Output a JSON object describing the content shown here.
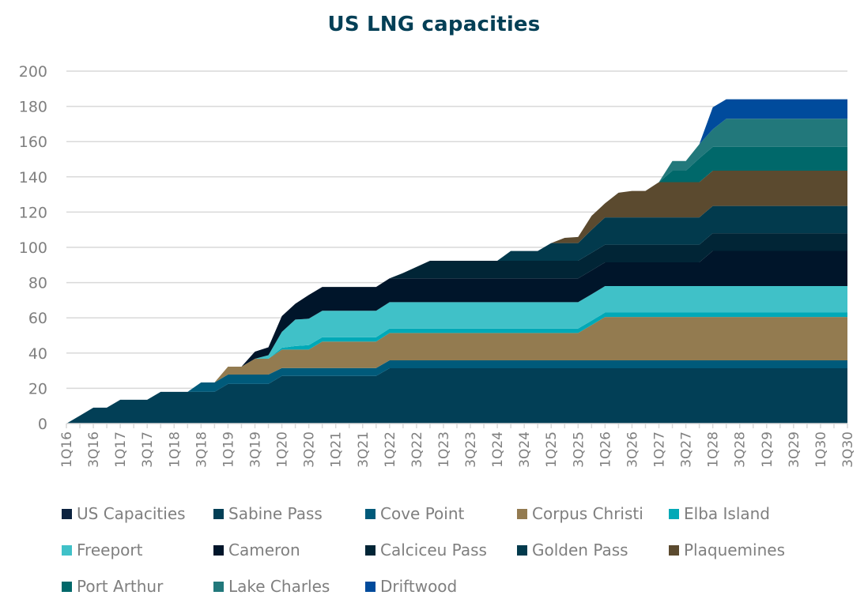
{
  "chart_data": {
    "type": "area",
    "stacked": true,
    "title": "US LNG capacities",
    "xlabel": "",
    "ylabel": "",
    "ylim": [
      0,
      200
    ],
    "yticks": [
      0,
      20,
      40,
      60,
      80,
      100,
      120,
      140,
      160,
      180,
      200
    ],
    "grid": true,
    "legend_position": "bottom",
    "categories": [
      "1Q16",
      "2Q16",
      "3Q16",
      "4Q16",
      "1Q17",
      "2Q17",
      "3Q17",
      "4Q17",
      "1Q18",
      "2Q18",
      "3Q18",
      "4Q18",
      "1Q19",
      "2Q19",
      "3Q19",
      "4Q19",
      "1Q20",
      "2Q20",
      "3Q20",
      "4Q20",
      "1Q21",
      "2Q21",
      "3Q21",
      "4Q21",
      "1Q22",
      "2Q22",
      "3Q22",
      "4Q22",
      "1Q23",
      "2Q23",
      "3Q23",
      "4Q23",
      "1Q24",
      "2Q24",
      "3Q24",
      "4Q24",
      "1Q25",
      "2Q25",
      "3Q25",
      "4Q25",
      "1Q26",
      "2Q26",
      "3Q26",
      "4Q26",
      "1Q27",
      "2Q27",
      "3Q27",
      "4Q27",
      "1Q28",
      "2Q28",
      "3Q28",
      "4Q28",
      "1Q29",
      "2Q29",
      "3Q29",
      "4Q29",
      "1Q30",
      "2Q30",
      "3Q30"
    ],
    "xtick_labels": [
      "1Q16",
      "3Q16",
      "1Q17",
      "3Q17",
      "1Q18",
      "3Q18",
      "1Q19",
      "3Q19",
      "1Q20",
      "3Q20",
      "1Q21",
      "3Q21",
      "1Q22",
      "3Q22",
      "1Q23",
      "3Q23",
      "1Q24",
      "3Q24",
      "1Q25",
      "3Q25",
      "1Q26",
      "3Q26",
      "1Q27",
      "3Q27",
      "1Q28",
      "3Q28",
      "1Q29",
      "3Q29",
      "1Q30",
      "3Q30"
    ],
    "series": [
      {
        "name": "US Capacities",
        "color": "#0c2340",
        "values": [
          0,
          0,
          0,
          0,
          0,
          0,
          0,
          0,
          0,
          0,
          0,
          0,
          0,
          0,
          0,
          0,
          0,
          0,
          0,
          0,
          0,
          0,
          0,
          0,
          0,
          0,
          0,
          0,
          0,
          0,
          0,
          0,
          0,
          0,
          0,
          0,
          0,
          0,
          0,
          0,
          0,
          0,
          0,
          0,
          0,
          0,
          0,
          0,
          0,
          0,
          0,
          0,
          0,
          0,
          0,
          0,
          0,
          0,
          0
        ]
      },
      {
        "name": "Sabine Pass",
        "color": "#023f56",
        "values": [
          0,
          4.5,
          9,
          9,
          13.5,
          13.5,
          13.5,
          18,
          18,
          18,
          18,
          18,
          22.5,
          22.5,
          22.5,
          22.5,
          27,
          27,
          27,
          27,
          27,
          27,
          27,
          27,
          31.4,
          31.4,
          31.4,
          31.4,
          31.4,
          31.4,
          31.4,
          31.4,
          31.4,
          31.4,
          31.4,
          31.4,
          31.4,
          31.4,
          31.4,
          31.4,
          31.4,
          31.4,
          31.4,
          31.4,
          31.4,
          31.4,
          31.4,
          31.4,
          31.4,
          31.4,
          31.4,
          31.4,
          31.4,
          31.4,
          31.4,
          31.4,
          31.4,
          31.4,
          31.4
        ]
      },
      {
        "name": "Cove Point",
        "color": "#005a7a",
        "values": [
          0,
          0,
          0,
          0,
          0,
          0,
          0,
          0,
          0,
          0,
          5.3,
          5.3,
          5.3,
          5.3,
          5.3,
          5.3,
          4.5,
          4.5,
          4.5,
          4.5,
          4.5,
          4.5,
          4.5,
          4.5,
          4.5,
          4.5,
          4.5,
          4.5,
          4.5,
          4.5,
          4.5,
          4.5,
          4.5,
          4.5,
          4.5,
          4.5,
          4.5,
          4.5,
          4.5,
          4.5,
          4.5,
          4.5,
          4.5,
          4.5,
          4.5,
          4.5,
          4.5,
          4.5,
          4.5,
          4.5,
          4.5,
          4.5,
          4.5,
          4.5,
          4.5,
          4.5,
          4.5,
          4.5,
          4.5
        ]
      },
      {
        "name": "Corpus Christi",
        "color": "#937b50",
        "values": [
          0,
          0,
          0,
          0,
          0,
          0,
          0,
          0,
          0,
          0,
          0,
          0,
          4.5,
          4.5,
          9,
          9,
          10.5,
          10.5,
          10.5,
          15,
          15,
          15,
          15,
          15,
          15.5,
          15.5,
          15.5,
          15.5,
          15.5,
          15.5,
          15.5,
          15.5,
          15.5,
          15.5,
          15.5,
          15.5,
          15.5,
          15.5,
          15.5,
          20,
          24.6,
          24.6,
          24.6,
          24.6,
          24.6,
          24.6,
          24.6,
          24.6,
          24.6,
          24.6,
          24.6,
          24.6,
          24.6,
          24.6,
          24.6,
          24.6,
          24.6,
          24.6,
          24.6
        ]
      },
      {
        "name": "Elba Island",
        "color": "#00a9b7",
        "values": [
          0,
          0,
          0,
          0,
          0,
          0,
          0,
          0,
          0,
          0,
          0,
          0,
          0,
          0,
          0,
          0,
          1,
          2,
          2.5,
          2.5,
          2.5,
          2.5,
          2.5,
          2.5,
          2.5,
          2.5,
          2.5,
          2.5,
          2.5,
          2.5,
          2.5,
          2.5,
          2.5,
          2.5,
          2.5,
          2.5,
          2.5,
          2.5,
          2.5,
          2.5,
          2.5,
          2.5,
          2.5,
          2.5,
          2.5,
          2.5,
          2.5,
          2.5,
          2.5,
          2.5,
          2.5,
          2.5,
          2.5,
          2.5,
          2.5,
          2.5,
          2.5,
          2.5,
          2.5
        ]
      },
      {
        "name": "Freeport",
        "color": "#40c1c8",
        "values": [
          0,
          0,
          0,
          0,
          0,
          0,
          0,
          0,
          0,
          0,
          0,
          0,
          0,
          0,
          0,
          2,
          9,
          15,
          15,
          15,
          15,
          15,
          15,
          15,
          15,
          15,
          15,
          15,
          15,
          15,
          15,
          15,
          15,
          15,
          15,
          15,
          15,
          15,
          15,
          15,
          15,
          15,
          15,
          15,
          15,
          15,
          15,
          15,
          15,
          15,
          15,
          15,
          15,
          15,
          15,
          15,
          15,
          15,
          15
        ]
      },
      {
        "name": "Cameron",
        "color": "#00152a",
        "values": [
          0,
          0,
          0,
          0,
          0,
          0,
          0,
          0,
          0,
          0,
          0,
          0,
          0,
          0,
          4,
          4.5,
          9,
          9,
          13.5,
          13.5,
          13.5,
          13.5,
          13.5,
          13.5,
          13.5,
          13.5,
          13.5,
          13.5,
          13.5,
          13.5,
          13.5,
          13.5,
          13.5,
          13.5,
          13.5,
          13.5,
          13.5,
          13.5,
          13.5,
          13.5,
          13.5,
          13.5,
          13.5,
          13.5,
          13.5,
          13.5,
          13.5,
          13.5,
          20,
          20,
          20,
          20,
          20,
          20,
          20,
          20,
          20,
          20,
          20
        ]
      },
      {
        "name": "Calciceu Pass",
        "color": "#012536",
        "values": [
          0,
          0,
          0,
          0,
          0,
          0,
          0,
          0,
          0,
          0,
          0,
          0,
          0,
          0,
          0,
          0,
          0,
          0,
          0,
          0,
          0,
          0,
          0,
          0,
          0,
          3,
          6.5,
          10,
          10,
          10,
          10,
          10,
          10,
          10,
          10,
          10,
          10,
          10,
          10,
          10,
          10,
          10,
          10,
          10,
          10,
          10,
          10,
          10,
          10,
          10,
          10,
          10,
          10,
          10,
          10,
          10,
          10,
          10,
          10
        ]
      },
      {
        "name": "Golden Pass",
        "color": "#023a4d",
        "values": [
          0,
          0,
          0,
          0,
          0,
          0,
          0,
          0,
          0,
          0,
          0,
          0,
          0,
          0,
          0,
          0,
          0,
          0,
          0,
          0,
          0,
          0,
          0,
          0,
          0,
          0,
          0,
          0,
          0,
          0,
          0,
          0,
          0,
          5.5,
          5.5,
          5.5,
          10,
          10,
          10,
          13,
          15.5,
          15.5,
          15.5,
          15.5,
          15.5,
          15.5,
          15.5,
          15.5,
          15.5,
          15.5,
          15.5,
          15.5,
          15.5,
          15.5,
          15.5,
          15.5,
          15.5,
          15.5,
          15.5
        ]
      },
      {
        "name": "Plaquemines",
        "color": "#5b4a2f",
        "values": [
          0,
          0,
          0,
          0,
          0,
          0,
          0,
          0,
          0,
          0,
          0,
          0,
          0,
          0,
          0,
          0,
          0,
          0,
          0,
          0,
          0,
          0,
          0,
          0,
          0,
          0,
          0,
          0,
          0,
          0,
          0,
          0,
          0,
          0,
          0,
          0,
          0,
          3,
          3.5,
          8,
          8,
          14,
          15,
          15,
          20,
          20,
          20,
          20,
          20,
          20,
          20,
          20,
          20,
          20,
          20,
          20,
          20,
          20,
          20
        ]
      },
      {
        "name": "Port Arthur",
        "color": "#00686a",
        "values": [
          0,
          0,
          0,
          0,
          0,
          0,
          0,
          0,
          0,
          0,
          0,
          0,
          0,
          0,
          0,
          0,
          0,
          0,
          0,
          0,
          0,
          0,
          0,
          0,
          0,
          0,
          0,
          0,
          0,
          0,
          0,
          0,
          0,
          0,
          0,
          0,
          0,
          0,
          0,
          0,
          0,
          0,
          0,
          0,
          0,
          6.5,
          6.5,
          13.5,
          13.5,
          13.5,
          13.5,
          13.5,
          13.5,
          13.5,
          13.5,
          13.5,
          13.5,
          13.5,
          13.5
        ]
      },
      {
        "name": "Lake Charles",
        "color": "#22787b",
        "values": [
          0,
          0,
          0,
          0,
          0,
          0,
          0,
          0,
          0,
          0,
          0,
          0,
          0,
          0,
          0,
          0,
          0,
          0,
          0,
          0,
          0,
          0,
          0,
          0,
          0,
          0,
          0,
          0,
          0,
          0,
          0,
          0,
          0,
          0,
          0,
          0,
          0,
          0,
          0,
          0,
          0,
          0,
          0,
          0,
          0,
          5.5,
          5.5,
          8,
          10,
          16,
          16,
          16,
          16,
          16,
          16,
          16,
          16,
          16,
          16
        ]
      },
      {
        "name": "Driftwood",
        "color": "#004b9c",
        "values": [
          0,
          0,
          0,
          0,
          0,
          0,
          0,
          0,
          0,
          0,
          0,
          0,
          0,
          0,
          0,
          0,
          0,
          0,
          0,
          0,
          0,
          0,
          0,
          0,
          0,
          0,
          0,
          0,
          0,
          0,
          0,
          0,
          0,
          0,
          0,
          0,
          0,
          0,
          0,
          0,
          0,
          0,
          0,
          0,
          0,
          0,
          0,
          0,
          12.5,
          11,
          11,
          11,
          11,
          11,
          11,
          11,
          11,
          11,
          11
        ]
      }
    ]
  }
}
